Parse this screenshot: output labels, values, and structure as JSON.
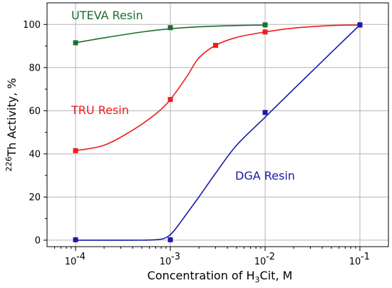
{
  "chart_data": {
    "type": "line",
    "xscale": "log",
    "xlim": [
      5e-05,
      0.2
    ],
    "ylim": [
      -3,
      110
    ],
    "grid": true,
    "x_tick_values": [
      0.0001,
      0.001,
      0.01,
      0.1
    ],
    "x_tick_labels": [
      {
        "base": "10",
        "exp": "-4"
      },
      {
        "base": "10",
        "exp": "-3"
      },
      {
        "base": "10",
        "exp": "-2"
      },
      {
        "base": "10",
        "exp": "-1"
      }
    ],
    "y_ticks": [
      0,
      20,
      40,
      60,
      80,
      100
    ],
    "xlabel": {
      "pre": "Concentration of H",
      "sub": "3",
      "post": "Cit, M"
    },
    "ylabel": {
      "sup": "226",
      "post": "Th Activity, %"
    },
    "series": [
      {
        "name": "UTEVA Resin",
        "color": "#1a6e2e",
        "points": [
          [
            0.0001,
            91.5
          ],
          [
            0.001,
            98.5
          ],
          [
            0.01,
            99.8
          ],
          [
            0.1,
            99.8
          ]
        ],
        "curve": [
          [
            0.0001,
            91.5
          ],
          [
            0.0002,
            93.8
          ],
          [
            0.0005,
            96.5
          ],
          [
            0.001,
            98.0
          ],
          [
            0.002,
            98.9
          ],
          [
            0.005,
            99.5
          ],
          [
            0.01,
            99.7
          ]
        ]
      },
      {
        "name": "TRU Resin",
        "color": "#ee1c1c",
        "points": [
          [
            0.0001,
            41.5
          ],
          [
            0.001,
            65.2
          ],
          [
            0.003,
            90.3
          ],
          [
            0.01,
            96.5
          ],
          [
            0.1,
            99.7
          ]
        ],
        "curve": [
          [
            0.0001,
            41.5
          ],
          [
            0.0002,
            44.0
          ],
          [
            0.0004,
            51.0
          ],
          [
            0.0007,
            58.5
          ],
          [
            0.001,
            65.2
          ],
          [
            0.0015,
            76.0
          ],
          [
            0.002,
            84.5
          ],
          [
            0.003,
            90.3
          ],
          [
            0.005,
            94.0
          ],
          [
            0.01,
            96.5
          ],
          [
            0.02,
            98.3
          ],
          [
            0.05,
            99.5
          ],
          [
            0.1,
            99.7
          ]
        ]
      },
      {
        "name": "DGA Resin",
        "color": "#1a1aa6",
        "points": [
          [
            0.0001,
            0.2
          ],
          [
            0.001,
            0.2
          ],
          [
            0.01,
            59.2
          ],
          [
            0.1,
            99.8
          ]
        ],
        "curve": [
          [
            0.0001,
            0.0
          ],
          [
            0.0004,
            0.0
          ],
          [
            0.0007,
            0.2
          ],
          [
            0.0009,
            1.2
          ],
          [
            0.0011,
            4.5
          ],
          [
            0.0015,
            12.5
          ],
          [
            0.002,
            20.0
          ],
          [
            0.003,
            31.0
          ],
          [
            0.005,
            44.0
          ],
          [
            0.01,
            57.0
          ],
          [
            0.02,
            70.0
          ],
          [
            0.05,
            87.0
          ],
          [
            0.1,
            99.8
          ]
        ]
      }
    ]
  }
}
